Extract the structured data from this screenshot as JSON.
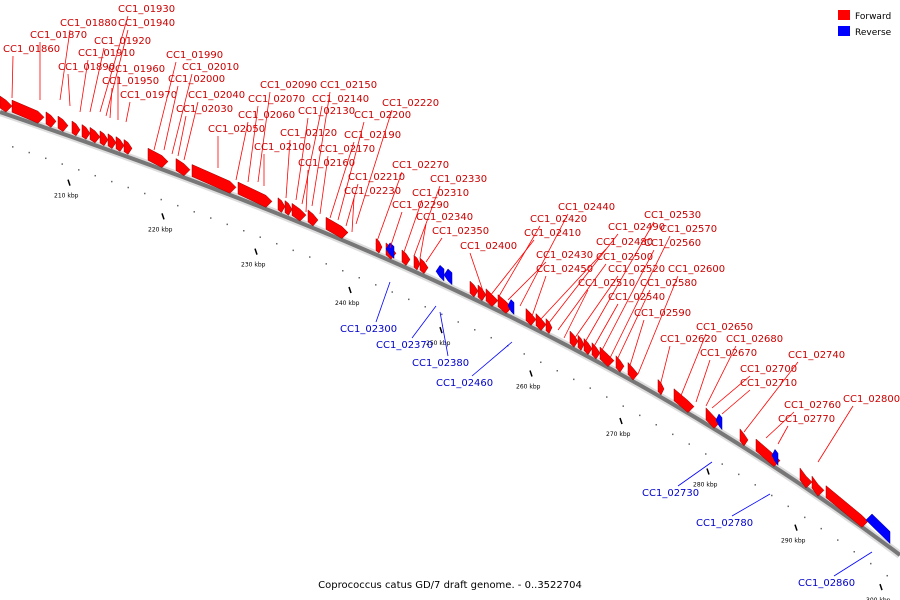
{
  "title": "Coprococcus catus GD/7 draft genome. - 0..3522704",
  "legend": {
    "forward": {
      "label": "Forward",
      "color": "#ff0000"
    },
    "reverse": {
      "label": "Reverse",
      "color": "#0000ff"
    }
  },
  "axis": {
    "ticks": [
      "210 kbp",
      "220 kbp",
      "230 kbp",
      "240 kbp",
      "250 kbp",
      "260 kbp",
      "270 kbp",
      "280 kbp",
      "290 kbp",
      "300 kbp"
    ]
  },
  "genes": [
    {
      "label": "CC1_01860",
      "strand": "forward"
    },
    {
      "label": "CC1_01870",
      "strand": "forward"
    },
    {
      "label": "CC1_01880",
      "strand": "forward"
    },
    {
      "label": "CC1_01890",
      "strand": "forward"
    },
    {
      "label": "CC1_01910",
      "strand": "forward"
    },
    {
      "label": "CC1_01920",
      "strand": "forward"
    },
    {
      "label": "CC1_01930",
      "strand": "forward"
    },
    {
      "label": "CC1_01940",
      "strand": "forward"
    },
    {
      "label": "CC1_01950",
      "strand": "forward"
    },
    {
      "label": "CC1_01960",
      "strand": "forward"
    },
    {
      "label": "CC1_01970",
      "strand": "forward"
    },
    {
      "label": "CC1_01990",
      "strand": "forward"
    },
    {
      "label": "CC1_02000",
      "strand": "forward"
    },
    {
      "label": "CC1_02010",
      "strand": "forward"
    },
    {
      "label": "CC1_02030",
      "strand": "forward"
    },
    {
      "label": "CC1_02040",
      "strand": "forward"
    },
    {
      "label": "CC1_02050",
      "strand": "forward"
    },
    {
      "label": "CC1_02060",
      "strand": "forward"
    },
    {
      "label": "CC1_02070",
      "strand": "forward"
    },
    {
      "label": "CC1_02090",
      "strand": "forward"
    },
    {
      "label": "CC1_02100",
      "strand": "forward"
    },
    {
      "label": "CC1_02120",
      "strand": "forward"
    },
    {
      "label": "CC1_02130",
      "strand": "forward"
    },
    {
      "label": "CC1_02140",
      "strand": "forward"
    },
    {
      "label": "CC1_02150",
      "strand": "forward"
    },
    {
      "label": "CC1_02160",
      "strand": "forward"
    },
    {
      "label": "CC1_02170",
      "strand": "forward"
    },
    {
      "label": "CC1_02190",
      "strand": "forward"
    },
    {
      "label": "CC1_02200",
      "strand": "forward"
    },
    {
      "label": "CC1_02210",
      "strand": "forward"
    },
    {
      "label": "CC1_02220",
      "strand": "forward"
    },
    {
      "label": "CC1_02230",
      "strand": "forward"
    },
    {
      "label": "CC1_02270",
      "strand": "forward"
    },
    {
      "label": "CC1_02290",
      "strand": "forward"
    },
    {
      "label": "CC1_02300",
      "strand": "reverse"
    },
    {
      "label": "CC1_02310",
      "strand": "forward"
    },
    {
      "label": "CC1_02330",
      "strand": "forward"
    },
    {
      "label": "CC1_02340",
      "strand": "forward"
    },
    {
      "label": "CC1_02350",
      "strand": "forward"
    },
    {
      "label": "CC1_02370",
      "strand": "reverse"
    },
    {
      "label": "CC1_02380",
      "strand": "reverse"
    },
    {
      "label": "CC1_02400",
      "strand": "forward"
    },
    {
      "label": "CC1_02410",
      "strand": "forward"
    },
    {
      "label": "CC1_02420",
      "strand": "forward"
    },
    {
      "label": "CC1_02430",
      "strand": "forward"
    },
    {
      "label": "CC1_02440",
      "strand": "forward"
    },
    {
      "label": "CC1_02450",
      "strand": "forward"
    },
    {
      "label": "CC1_02460",
      "strand": "reverse"
    },
    {
      "label": "CC1_02480",
      "strand": "forward"
    },
    {
      "label": "CC1_02490",
      "strand": "forward"
    },
    {
      "label": "CC1_02500",
      "strand": "forward"
    },
    {
      "label": "CC1_02510",
      "strand": "forward"
    },
    {
      "label": "CC1_02520",
      "strand": "forward"
    },
    {
      "label": "CC1_02530",
      "strand": "forward"
    },
    {
      "label": "CC1_02540",
      "strand": "forward"
    },
    {
      "label": "CC1_02560",
      "strand": "forward"
    },
    {
      "label": "CC1_02570",
      "strand": "forward"
    },
    {
      "label": "CC1_02580",
      "strand": "forward"
    },
    {
      "label": "CC1_02590",
      "strand": "forward"
    },
    {
      "label": "CC1_02600",
      "strand": "forward"
    },
    {
      "label": "CC1_02620",
      "strand": "forward"
    },
    {
      "label": "CC1_02650",
      "strand": "forward"
    },
    {
      "label": "CC1_02670",
      "strand": "forward"
    },
    {
      "label": "CC1_02680",
      "strand": "forward"
    },
    {
      "label": "CC1_02700",
      "strand": "forward"
    },
    {
      "label": "CC1_02710",
      "strand": "forward"
    },
    {
      "label": "CC1_02730",
      "strand": "reverse"
    },
    {
      "label": "CC1_02740",
      "strand": "forward"
    },
    {
      "label": "CC1_02760",
      "strand": "forward"
    },
    {
      "label": "CC1_02770",
      "strand": "forward"
    },
    {
      "label": "CC1_02780",
      "strand": "reverse"
    },
    {
      "label": "CC1_02800",
      "strand": "forward"
    },
    {
      "label": "CC1_02860",
      "strand": "reverse"
    }
  ]
}
